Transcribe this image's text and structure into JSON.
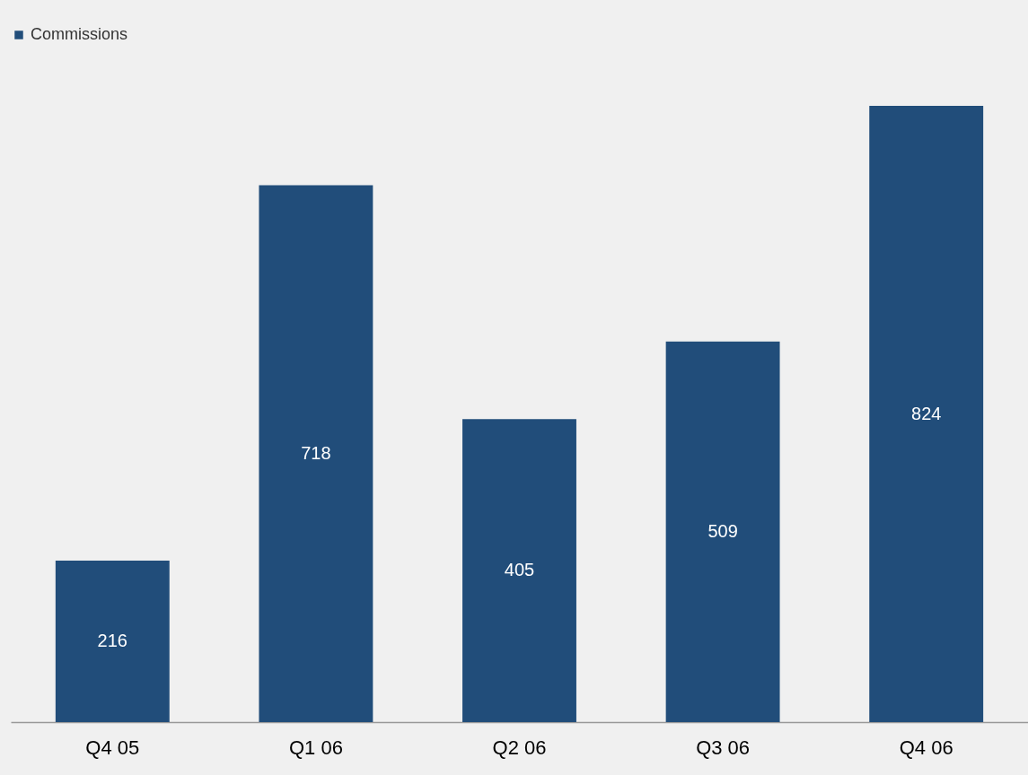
{
  "chart_data": {
    "type": "bar",
    "categories": [
      "Q4 05",
      "Q1 06",
      "Q2 06",
      "Q3 06",
      "Q4 06"
    ],
    "series": [
      {
        "name": "Commissions",
        "color": "#214d7a",
        "values": [
          216,
          718,
          405,
          509,
          824
        ]
      }
    ],
    "data_labels": true,
    "legend": "top",
    "grid": false
  }
}
